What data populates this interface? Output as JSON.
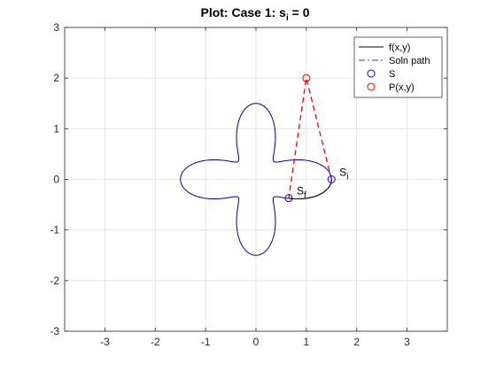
{
  "chart_data": {
    "type": "line",
    "title": {
      "main": "Plot: Case 1: s",
      "sub": "i",
      "rest": " = 0"
    },
    "xlabel": "",
    "ylabel": "",
    "xlim": [
      -3.8,
      3.8
    ],
    "ylim": [
      -3,
      3
    ],
    "xticks": [
      -3,
      -2,
      -1,
      0,
      1,
      2,
      3
    ],
    "yticks": [
      -3,
      -2,
      -1,
      0,
      1,
      2,
      3
    ],
    "grid": true,
    "legend_position": "top-right",
    "legend": [
      {
        "label": "f(x,y)",
        "marker": "line",
        "color": "#000000"
      },
      {
        "label": "Soln path",
        "marker": "dashdot",
        "color": "#1f3fbf"
      },
      {
        "label": "S",
        "marker": "circle",
        "color": "#0000ff"
      },
      {
        "label": "P(x,y)",
        "marker": "circle",
        "color": "#ff0000"
      }
    ],
    "curve": {
      "name": "f(x,y)",
      "kind": "polar",
      "r_formula": "1 + 0.5*cos(4*theta)",
      "color": "#0000a0"
    },
    "highlight_arc": {
      "color": "#000000",
      "theta_start_deg": -30,
      "theta_end_deg": 0
    },
    "soln_path": {
      "color": "#ff0000",
      "points": [
        [
          1.5,
          0
        ],
        [
          1.0,
          2.0
        ],
        [
          0.65,
          -0.37
        ]
      ]
    },
    "points_S": [
      {
        "x": 1.5,
        "y": 0,
        "label": "S",
        "sub": "i"
      },
      {
        "x": 0.65,
        "y": -0.37,
        "label": "S",
        "sub": "f"
      }
    ],
    "point_P": {
      "x": 1.0,
      "y": 2.0
    },
    "colors": {
      "axis": "#262626",
      "grid": "#dfdfdf",
      "blue": "#0000ff",
      "red": "#ff0000",
      "curve": "#0000a0"
    }
  }
}
